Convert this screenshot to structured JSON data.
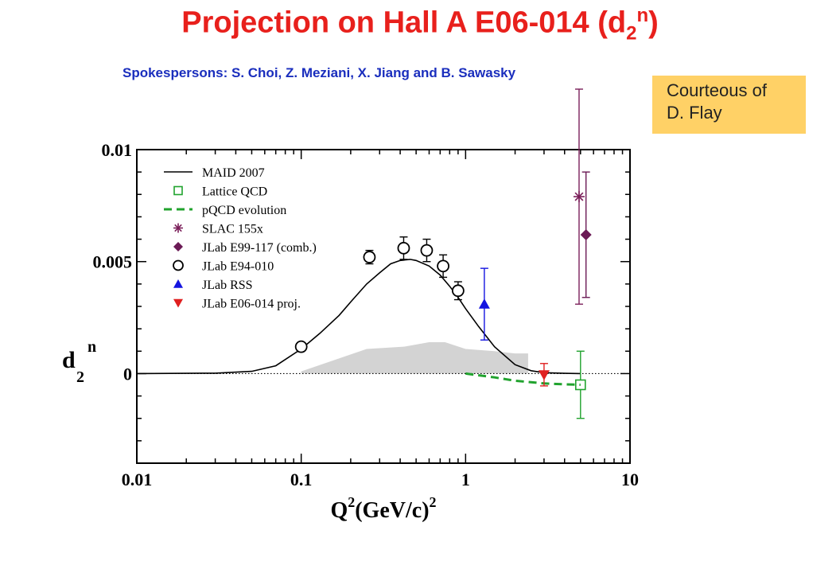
{
  "header": {
    "title_main": "Projection on Hall A E06-014 (d",
    "title_sub": "2",
    "title_sup": "n",
    "title_close": ")",
    "spokespersons": "Spokespersons: S. Choi, Z. Meziani, X. Jiang and  B. Sawasky"
  },
  "courtesy": {
    "line1": "Courteous of",
    "line2": "D. Flay"
  },
  "chart_data": {
    "type": "scatter",
    "x_scale": "log",
    "xlim": [
      0.01,
      10
    ],
    "ylim": [
      -0.004,
      0.01
    ],
    "x_ticks": [
      {
        "value": 0.01,
        "label": "0.01"
      },
      {
        "value": 0.1,
        "label": "0.1"
      },
      {
        "value": 1,
        "label": "1"
      },
      {
        "value": 10,
        "label": "10"
      }
    ],
    "y_ticks": [
      {
        "value": 0.01,
        "label": "0.01"
      },
      {
        "value": 0.005,
        "label": "0.005"
      },
      {
        "value": 0,
        "label": "0"
      }
    ],
    "xlabel": {
      "base": "Q",
      "sup1": "2",
      "unit": "(GeV/c)",
      "sup2": "2"
    },
    "ylabel": {
      "base": "d",
      "sub": "2",
      "sup": "n"
    },
    "grid": false,
    "zero_line": true,
    "legend_position": "top-left",
    "colors": {
      "maid": "#000000",
      "lattice": "#21a32e",
      "pqcd": "#21a32e",
      "slac": "#7b1f5a",
      "e99": "#6b1a55",
      "e94": "#000000",
      "rss": "#1414e0",
      "e06": "#e02020",
      "band": "#d3d3d3"
    },
    "legend": [
      {
        "key": "maid",
        "label": "MAID 2007",
        "marker": "line"
      },
      {
        "key": "lattice",
        "label": "Lattice QCD",
        "marker": "open-square"
      },
      {
        "key": "pqcd",
        "label": "pQCD evolution",
        "marker": "dashed-line"
      },
      {
        "key": "slac",
        "label": "SLAC 155x",
        "marker": "asterisk"
      },
      {
        "key": "e99",
        "label": "JLab E99-117 (comb.)",
        "marker": "diamond"
      },
      {
        "key": "e94",
        "label": "JLab E94-010",
        "marker": "open-circle"
      },
      {
        "key": "rss",
        "label": "JLab RSS",
        "marker": "triangle-up"
      },
      {
        "key": "e06",
        "label": "JLab E06-014 proj.",
        "marker": "triangle-down"
      }
    ],
    "series": [
      {
        "name": "MAID 2007",
        "type": "line",
        "x": [
          0.01,
          0.03,
          0.05,
          0.07,
          0.1,
          0.13,
          0.17,
          0.2,
          0.25,
          0.3,
          0.35,
          0.4,
          0.46,
          0.5,
          0.6,
          0.7,
          0.8,
          0.9,
          1.0,
          1.2,
          1.5,
          2.0,
          2.5,
          3.0,
          4.0,
          5.0
        ],
        "y": [
          0.0,
          2e-05,
          0.0001,
          0.00035,
          0.0011,
          0.0018,
          0.0026,
          0.0032,
          0.004,
          0.0045,
          0.0049,
          0.00505,
          0.0051,
          0.00505,
          0.0048,
          0.0044,
          0.0039,
          0.0034,
          0.0029,
          0.0021,
          0.0012,
          0.0004,
          0.00013,
          4e-05,
          1e-05,
          0.0
        ]
      },
      {
        "name": "Lattice QCD",
        "type": "points",
        "x": [
          5.0
        ],
        "y": [
          -0.0005
        ],
        "yerr": [
          0.0015
        ]
      },
      {
        "name": "pQCD evolution",
        "type": "line",
        "x": [
          1.0,
          1.5,
          2.0,
          3.0,
          4.0,
          5.0
        ],
        "y": [
          0.0,
          -0.00017,
          -0.00032,
          -0.00044,
          -0.00048,
          -0.0005
        ]
      },
      {
        "name": "SLAC 155x",
        "type": "points",
        "x": [
          4.9
        ],
        "y": [
          0.0079
        ],
        "yerr": [
          0.0048
        ]
      },
      {
        "name": "JLab E99-117 (comb.)",
        "type": "points",
        "x": [
          5.4
        ],
        "y": [
          0.0062
        ],
        "yerr": [
          0.0028
        ]
      },
      {
        "name": "JLab E94-010",
        "type": "points",
        "x": [
          0.1,
          0.26,
          0.42,
          0.58,
          0.73,
          0.9
        ],
        "y": [
          0.0012,
          0.0052,
          0.0056,
          0.0055,
          0.0048,
          0.0037
        ],
        "yerr": [
          0.0,
          0.0003,
          0.0005,
          0.0005,
          0.0005,
          0.0004
        ]
      },
      {
        "name": "JLab RSS",
        "type": "points",
        "x": [
          1.3
        ],
        "y": [
          0.0031
        ],
        "yerr": [
          0.0016
        ]
      },
      {
        "name": "JLab E06-014 proj.",
        "type": "points",
        "x": [
          3.0
        ],
        "y": [
          -5e-05
        ],
        "yerr": [
          0.0005
        ]
      },
      {
        "name": "systematic band",
        "type": "band",
        "x": [
          0.1,
          0.25,
          0.42,
          0.6,
          0.75,
          1.0,
          1.5,
          2.0,
          2.4
        ],
        "y": [
          0.0001,
          0.0011,
          0.0012,
          0.0014,
          0.0014,
          0.0011,
          0.001,
          0.0009,
          0.0009
        ]
      }
    ]
  }
}
